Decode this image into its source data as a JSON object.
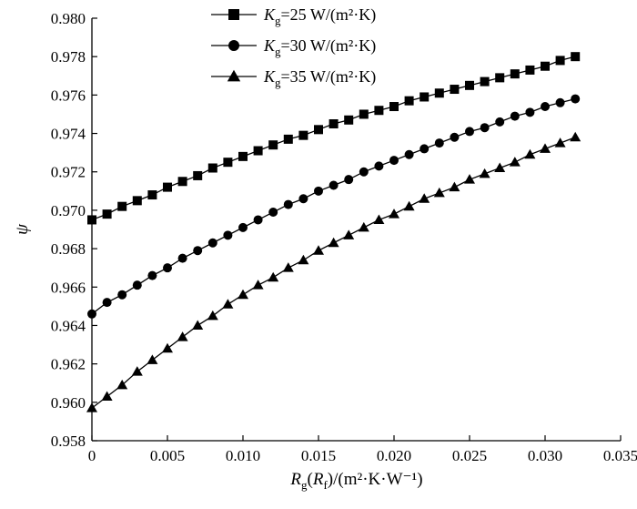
{
  "chart_data": {
    "type": "line",
    "xlabel": "Rg(Rf)/(m²·K·W⁻¹)",
    "ylabel": "ψ",
    "xlim": [
      0,
      0.035
    ],
    "ylim": [
      0.958,
      0.98
    ],
    "x_ticks": [
      "0",
      "0.005",
      "0.010",
      "0.015",
      "0.020",
      "0.025",
      "0.030",
      "0.035"
    ],
    "y_ticks": [
      "0.958",
      "0.960",
      "0.962",
      "0.964",
      "0.966",
      "0.968",
      "0.970",
      "0.972",
      "0.974",
      "0.976",
      "0.978",
      "0.980"
    ],
    "grid": false,
    "legend_position": "top-center",
    "x": [
      0,
      0.001,
      0.002,
      0.003,
      0.004,
      0.005,
      0.006,
      0.007,
      0.008,
      0.009,
      0.01,
      0.011,
      0.012,
      0.013,
      0.014,
      0.015,
      0.016,
      0.017,
      0.018,
      0.019,
      0.02,
      0.021,
      0.022,
      0.023,
      0.024,
      0.025,
      0.026,
      0.027,
      0.028,
      0.029,
      0.03,
      0.031,
      0.032
    ],
    "series": [
      {
        "name": "Kg=25 W/(m²·K)",
        "marker": "square",
        "values": [
          0.9695,
          0.9698,
          0.9702,
          0.9705,
          0.9708,
          0.9712,
          0.9715,
          0.9718,
          0.9722,
          0.9725,
          0.9728,
          0.9731,
          0.9734,
          0.9737,
          0.9739,
          0.9742,
          0.9745,
          0.9747,
          0.975,
          0.9752,
          0.9754,
          0.9757,
          0.9759,
          0.9761,
          0.9763,
          0.9765,
          0.9767,
          0.9769,
          0.9771,
          0.9773,
          0.9775,
          0.9778,
          0.978
        ]
      },
      {
        "name": "Kg=30 W/(m²·K)",
        "marker": "circle",
        "values": [
          0.9646,
          0.9652,
          0.9656,
          0.9661,
          0.9666,
          0.967,
          0.9675,
          0.9679,
          0.9683,
          0.9687,
          0.9691,
          0.9695,
          0.9699,
          0.9703,
          0.9706,
          0.971,
          0.9713,
          0.9716,
          0.972,
          0.9723,
          0.9726,
          0.9729,
          0.9732,
          0.9735,
          0.9738,
          0.9741,
          0.9743,
          0.9746,
          0.9749,
          0.9751,
          0.9754,
          0.9756,
          0.9758
        ]
      },
      {
        "name": "Kg=35 W/(m²·K)",
        "marker": "triangle",
        "values": [
          0.9597,
          0.9603,
          0.9609,
          0.9616,
          0.9622,
          0.9628,
          0.9634,
          0.964,
          0.9645,
          0.9651,
          0.9656,
          0.9661,
          0.9665,
          0.967,
          0.9674,
          0.9679,
          0.9683,
          0.9687,
          0.9691,
          0.9695,
          0.9698,
          0.9702,
          0.9706,
          0.9709,
          0.9712,
          0.9716,
          0.9719,
          0.9722,
          0.9725,
          0.9729,
          0.9732,
          0.9735,
          0.9738
        ]
      }
    ],
    "colors": {
      "line": "#000000",
      "axis": "#000000",
      "background": "#ffffff"
    }
  }
}
